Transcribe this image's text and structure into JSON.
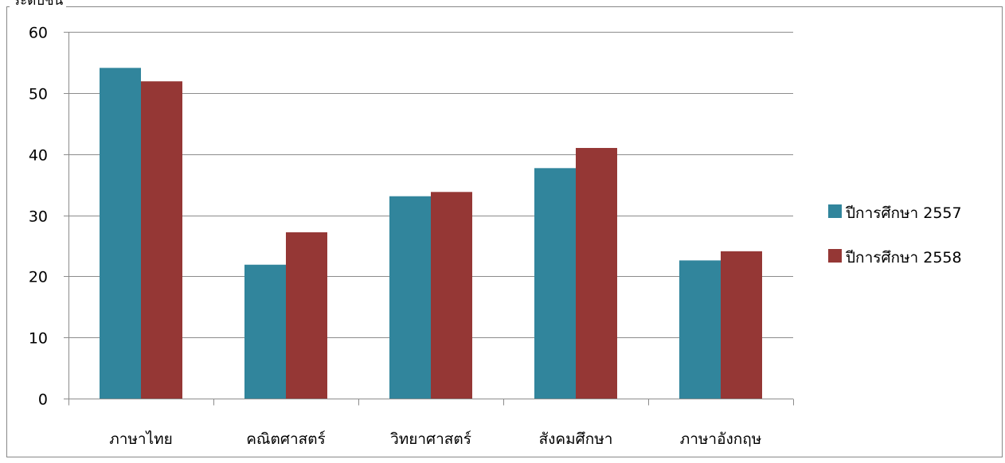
{
  "caption": "ระดับชั้น",
  "chart_data": {
    "type": "bar",
    "title": "",
    "xlabel": "",
    "ylabel": "",
    "ylim": [
      0,
      60
    ],
    "yticks": [
      0,
      10,
      20,
      30,
      40,
      50,
      60
    ],
    "grid": true,
    "legend_position": "right",
    "categories": [
      "ภาษาไทย",
      "คณิตศาสตร์",
      "วิทยาศาสตร์",
      "สังคมศึกษา",
      "ภาษาอังกฤษ"
    ],
    "series": [
      {
        "name": "ปีการศึกษา 2557",
        "color": "#31859c",
        "values": [
          54.1,
          21.9,
          33.1,
          37.7,
          22.6
        ]
      },
      {
        "name": "ปีการศึกษา 2558",
        "color": "#953735",
        "values": [
          51.9,
          27.2,
          33.8,
          41.0,
          24.1
        ]
      }
    ]
  }
}
